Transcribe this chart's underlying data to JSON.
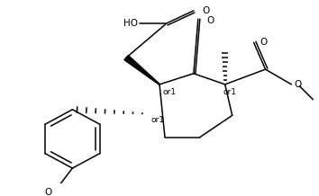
{
  "figsize": [
    3.54,
    2.18
  ],
  "dpi": 100,
  "bg_color": "white",
  "line_color": "black",
  "line_width": 1.1,
  "font_size": 7.0,
  "xlim": [
    0,
    354
  ],
  "ylim": [
    0,
    218
  ]
}
